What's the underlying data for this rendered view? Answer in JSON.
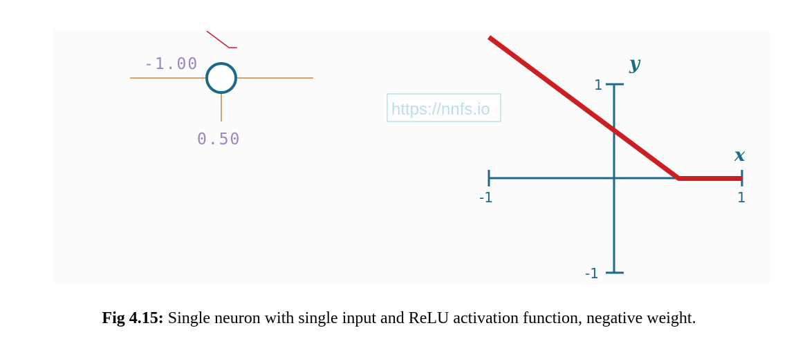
{
  "neuron": {
    "weight_label": "-1.00",
    "bias_label": "0.50"
  },
  "watermark": "https://nnfs.io",
  "chart_data": {
    "type": "line",
    "xlabel": "x",
    "ylabel": "y",
    "xlim": [
      -1,
      1
    ],
    "ylim": [
      -1,
      1
    ],
    "x_ticks": [
      "-1",
      "1"
    ],
    "y_ticks": [
      "1",
      "-1"
    ],
    "series": [
      {
        "x": [
          -1.0,
          0.5,
          1.0
        ],
        "y": [
          1.5,
          0.0,
          0.0
        ]
      }
    ],
    "colors": {
      "line": "#cc1f24",
      "axis": "#1b6a8c"
    }
  },
  "caption": {
    "label": "Fig 4.15:",
    "text": " Single neuron with single input and ReLU activation function, negative weight."
  },
  "colors": {
    "connection": "#c8823a",
    "neuron_stroke": "#1b6a8c",
    "value_text": "#9a86c0",
    "watermark": "#b9dfe8"
  }
}
